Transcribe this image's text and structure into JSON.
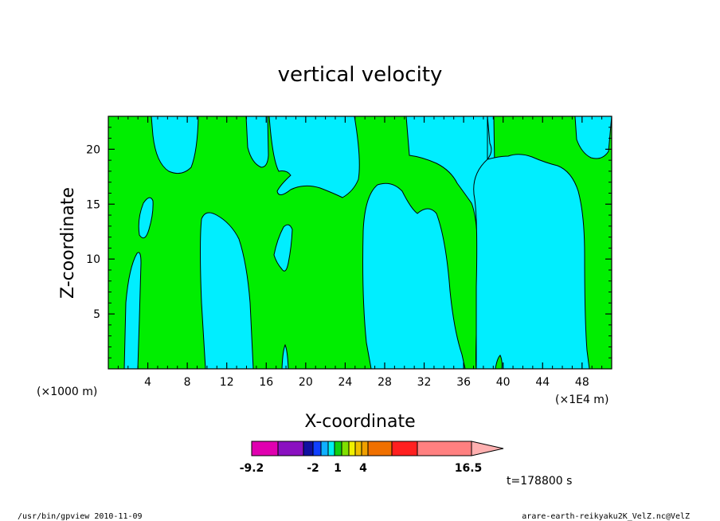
{
  "chart_data": {
    "type": "heatmap",
    "title": "vertical velocity",
    "xlabel": "X-coordinate",
    "ylabel": "Z-coordinate",
    "x_unit_left": "(×1000 m)",
    "x_unit_right": "(×1E4 m)",
    "xlim": [
      0,
      51
    ],
    "ylim": [
      0,
      23
    ],
    "x_ticks": [
      4,
      8,
      12,
      16,
      20,
      24,
      28,
      32,
      36,
      40,
      44,
      48
    ],
    "y_ticks": [
      5,
      10,
      15,
      20
    ],
    "colorbar": {
      "colors": [
        "#e000b0",
        "#8a10c0",
        "#1010a0",
        "#1040ff",
        "#10b0ff",
        "#00f0f0",
        "#10d010",
        "#80e000",
        "#f0f000",
        "#f0c000",
        "#f0a000",
        "#f07000",
        "#ff2020",
        "#ff8080",
        "#ffb0b0"
      ],
      "tick_labels": [
        "-9.2",
        "-2",
        "1",
        "4",
        "16.5"
      ]
    },
    "regions": [
      {
        "value": "negative",
        "color": "#00eeff"
      },
      {
        "value": "positive",
        "color": "#00ee00"
      }
    ],
    "time_label": "t=178800 s"
  },
  "footer": {
    "left": "/usr/bin/gpview   2010-11-09",
    "right": "arare-earth-reikyaku2K_VelZ.nc@VelZ"
  }
}
